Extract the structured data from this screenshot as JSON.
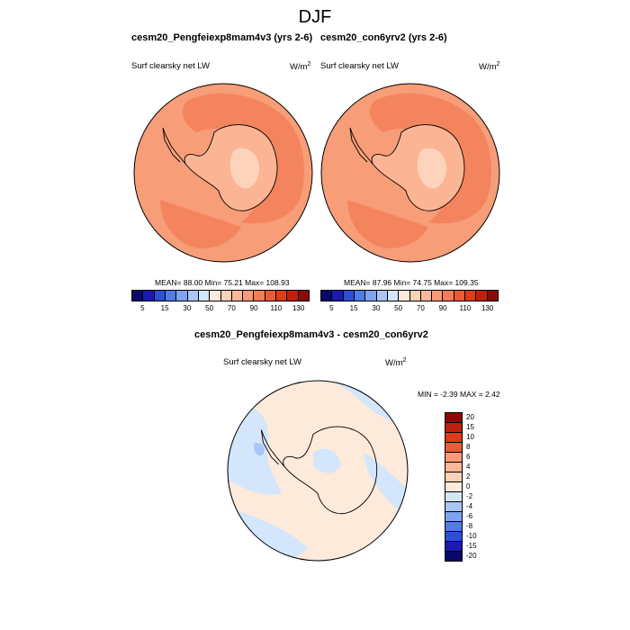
{
  "figure": {
    "title": "DJF"
  },
  "panel_left": {
    "title": "cesm20_Pengfeiexp8mam4v3 (yrs 2-6)",
    "variable": "Surf clearsky net LW",
    "units_base": "W/m",
    "units_exp": "2",
    "stats": "MEAN=  88.00  Min=  75.21  Max= 108.93"
  },
  "panel_right": {
    "title": "cesm20_con6yrv2 (yrs 2-6)",
    "variable": "Surf clearsky net LW",
    "units_base": "W/m",
    "units_exp": "2",
    "stats": "MEAN=  87.96  Min=  74.75  Max= 109.35"
  },
  "panel_diff": {
    "title": "cesm20_Pengfeiexp8mam4v3 - cesm20_con6yrv2",
    "variable": "Surf clearsky net LW",
    "units_base": "W/m",
    "units_exp": "2",
    "stats": "MIN =  -2.39 MAX =   2.42"
  },
  "colorbar_abs": {
    "colors": [
      "#08086b",
      "#1a1ab0",
      "#2d4fd6",
      "#4f7ce6",
      "#7ea3f0",
      "#a9c6f6",
      "#d4e6fb",
      "#fdeadb",
      "#fcd1b5",
      "#fbb797",
      "#f89a76",
      "#f47c56",
      "#ee5a35",
      "#e03a18",
      "#c0200d",
      "#8b0a05"
    ],
    "labels": [
      "5",
      "15",
      "30",
      "50",
      "70",
      "90",
      "110",
      "130"
    ]
  },
  "colorbar_diff": {
    "colors": [
      "#8b0a05",
      "#c0200d",
      "#e03a18",
      "#ee5a35",
      "#f89a76",
      "#fbb797",
      "#fcd1b5",
      "#fdeadb",
      "#d4e6fb",
      "#a9c6f6",
      "#7ea3f0",
      "#4f7ce6",
      "#2d4fd6",
      "#1a1ab0",
      "#08086b"
    ],
    "labels": [
      "20",
      "15",
      "10",
      "8",
      "6",
      "4",
      "2",
      "0",
      "-2",
      "-4",
      "-6",
      "-8",
      "-10",
      "-15",
      "-20"
    ]
  },
  "map_colors": {
    "ocean": "#f79d78",
    "warm": "#f4845e",
    "interior": "#fbb594",
    "pale": "#fdd3bb",
    "diff_pos": "#fdeadb",
    "diff_neg": "#d4e6fb",
    "diff_neg2": "#a9c6f6"
  },
  "chart_data": {
    "type": "heatmap",
    "title": "DJF",
    "panels": [
      {
        "title": "cesm20_Pengfeiexp8mam4v3 (yrs 2-6)",
        "variable": "Surf clearsky net LW",
        "units": "W/m2",
        "mean": 88.0,
        "min": 75.21,
        "max": 108.93
      },
      {
        "title": "cesm20_con6yrv2 (yrs 2-6)",
        "variable": "Surf clearsky net LW",
        "units": "W/m2",
        "mean": 87.96,
        "min": 74.75,
        "max": 109.35
      },
      {
        "title": "cesm20_Pengfeiexp8mam4v3 - cesm20_con6yrv2",
        "variable": "Surf clearsky net LW",
        "units": "W/m2",
        "min": -2.39,
        "max": 2.42
      }
    ],
    "colorbar_levels_abs": [
      5,
      15,
      30,
      50,
      70,
      90,
      110,
      130
    ],
    "colorbar_levels_diff": [
      20,
      15,
      10,
      8,
      6,
      4,
      2,
      0,
      -2,
      -4,
      -6,
      -8,
      -10,
      -15,
      -20
    ]
  }
}
